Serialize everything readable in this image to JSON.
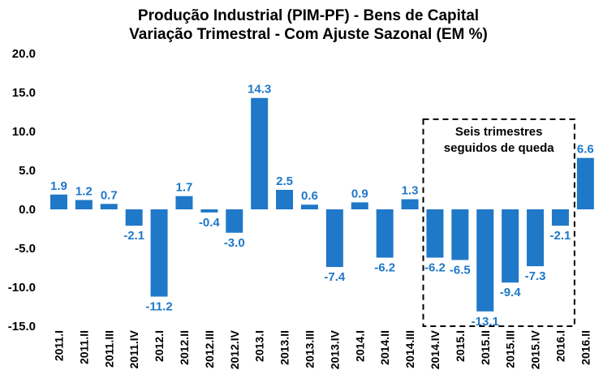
{
  "chart_data": {
    "type": "bar",
    "title": "Produção Industrial (PIM-PF) - Bens de Capital",
    "subtitle": "Variação Trimestral - Com Ajuste Sazonal (EM %)",
    "xlabel": "",
    "ylabel": "",
    "ylim": [
      -15,
      20
    ],
    "yticks": [
      "20.0",
      "15.0",
      "10.0",
      "5.0",
      "0.0",
      "-5.0",
      "-10.0",
      "-15.0"
    ],
    "grid": false,
    "bar_color": "#1f78c8",
    "categories": [
      "2011.I",
      "2011.II",
      "2011.III",
      "2011.IV",
      "2012.I",
      "2012.II",
      "2012.III",
      "2012.IV",
      "2013.I",
      "2013.II",
      "2013.III",
      "2013.IV",
      "2014.I",
      "2014.II",
      "2014.III",
      "2014.IV",
      "2015.I",
      "2015.II",
      "2015.III",
      "2015.IV",
      "2016.I",
      "2016.II"
    ],
    "values": [
      1.9,
      1.2,
      0.7,
      -2.1,
      -11.2,
      1.7,
      -0.4,
      -3.0,
      14.3,
      2.5,
      0.6,
      -7.4,
      0.9,
      -6.2,
      1.3,
      -6.2,
      -6.5,
      -13.1,
      -9.4,
      -7.3,
      -2.1,
      6.6
    ],
    "value_labels": [
      "1.9",
      "1.2",
      "0.7",
      "-2.1",
      "-11.2",
      "1.7",
      "-0.4",
      "-3.0",
      "14.3",
      "2.5",
      "0.6",
      "-7.4",
      "0.9",
      "-6.2",
      "1.3",
      "-6.2",
      "-6.5",
      "-13.1",
      "-9.4",
      "-7.3",
      "-2.1",
      "6.6"
    ],
    "annotation": {
      "lines": [
        "Seis trimestres",
        "seguidos de queda"
      ],
      "from_category": "2014.IV",
      "to_category": "2016.I"
    }
  }
}
